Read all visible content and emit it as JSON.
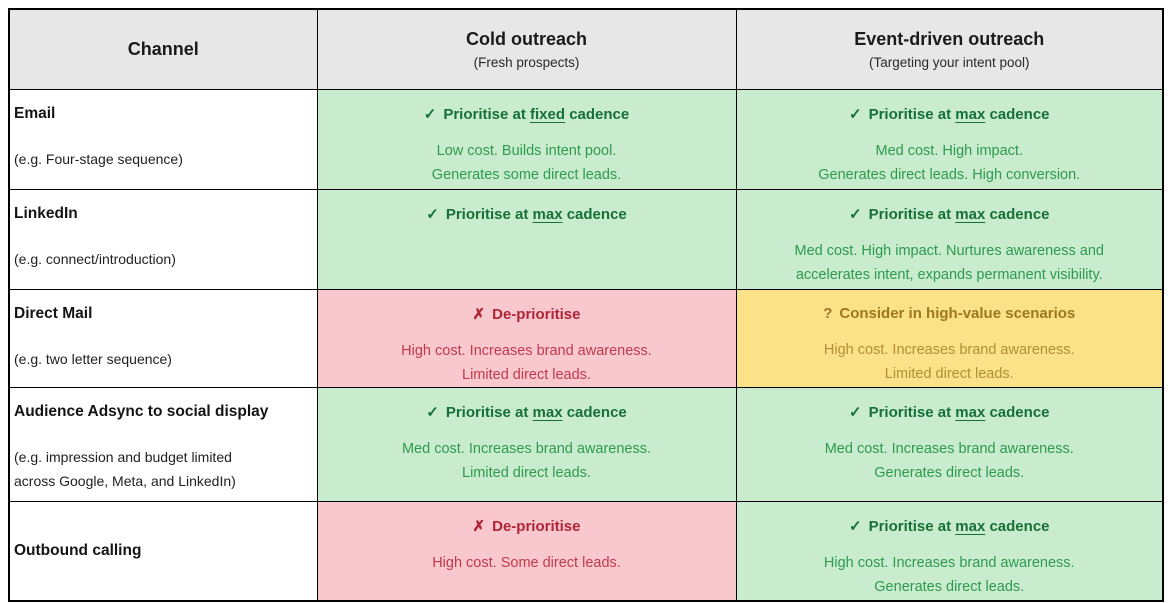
{
  "colors": {
    "header_bg": "#e8e7e7",
    "border": "#000000",
    "green_bg": "#c8eccd",
    "green_title": "#17703a",
    "green_body": "#2e9a4f",
    "red_bg": "#f9c8ce",
    "red_title": "#b02437",
    "red_body": "#c13a4b",
    "yellow_bg": "#fbe187",
    "yellow_title": "#9f781d",
    "yellow_body": "#b29035"
  },
  "table": {
    "columns": [
      {
        "title": "Channel",
        "subtitle": ""
      },
      {
        "title": "Cold outreach",
        "subtitle": "(Fresh prospects)"
      },
      {
        "title": "Event-driven outreach",
        "subtitle": "(Targeting your intent pool)"
      }
    ],
    "rows": [
      {
        "channel": "Email",
        "example_lines": [
          "(e.g. Four-stage sequence)",
          ""
        ],
        "cold": {
          "status": "green",
          "icon": "✓",
          "verdict_pre": "Prioritise at ",
          "verdict_underline": "fixed",
          "verdict_post": " cadence",
          "body": [
            "Low cost. Builds intent pool.",
            "Generates some direct leads."
          ]
        },
        "event": {
          "status": "green",
          "icon": "✓",
          "verdict_pre": "Prioritise at ",
          "verdict_underline": "max",
          "verdict_post": " cadence",
          "body": [
            "Med cost. High impact.",
            "Generates direct leads. High conversion."
          ]
        }
      },
      {
        "channel": "LinkedIn",
        "example_lines": [
          "(e.g. connect/introduction)",
          ""
        ],
        "cold": {
          "status": "green",
          "icon": "✓",
          "verdict_pre": "Prioritise at ",
          "verdict_underline": "max",
          "verdict_post": " cadence",
          "body": [
            "",
            ""
          ]
        },
        "event": {
          "status": "green",
          "icon": "✓",
          "verdict_pre": "Prioritise at ",
          "verdict_underline": "max",
          "verdict_post": " cadence",
          "body": [
            "Med cost. High impact. Nurtures awareness and",
            "accelerates intent, expands permanent visibility."
          ]
        }
      },
      {
        "channel": "Direct Mail",
        "example_lines": [
          "(e.g. two letter sequence)",
          ""
        ],
        "cold": {
          "status": "red",
          "icon": "✗",
          "verdict_pre": "De-prioritise",
          "verdict_underline": "",
          "verdict_post": "",
          "body": [
            "High cost. Increases brand awareness.",
            "Limited direct leads."
          ]
        },
        "event": {
          "status": "yellow",
          "icon": "?",
          "verdict_pre": "Consider in high-value scenarios",
          "verdict_underline": "",
          "verdict_post": "",
          "body": [
            "High cost. Increases brand awareness.",
            "Limited direct leads."
          ]
        }
      },
      {
        "channel": "Audience Adsync to social display",
        "example_lines": [
          "(e.g. impression and budget limited",
          "across Google, Meta, and LinkedIn)"
        ],
        "cold": {
          "status": "green",
          "icon": "✓",
          "verdict_pre": "Prioritise at ",
          "verdict_underline": "max",
          "verdict_post": " cadence",
          "body": [
            "Med cost. Increases brand awareness.",
            "Limited direct leads."
          ]
        },
        "event": {
          "status": "green",
          "icon": "✓",
          "verdict_pre": "Prioritise at ",
          "verdict_underline": "max",
          "verdict_post": " cadence",
          "body": [
            "Med cost. Increases brand awareness.",
            "Generates direct leads."
          ]
        }
      },
      {
        "channel": "Outbound calling",
        "example_lines": [
          "",
          ""
        ],
        "cold": {
          "status": "red",
          "icon": "✗",
          "verdict_pre": "De-prioritise",
          "verdict_underline": "",
          "verdict_post": "",
          "body": [
            "High cost. Some direct leads.",
            ""
          ]
        },
        "event": {
          "status": "green",
          "icon": "✓",
          "verdict_pre": "Prioritise at ",
          "verdict_underline": "max",
          "verdict_post": " cadence",
          "body": [
            "High cost. Increases brand awareness.",
            "Generates direct leads."
          ]
        }
      }
    ]
  },
  "chart_data": {
    "type": "table",
    "title": "",
    "columns": [
      "Channel",
      "Cold outreach (Fresh prospects)",
      "Event-driven outreach (Targeting your intent pool)"
    ],
    "rows": [
      [
        "Email (e.g. Four-stage sequence)",
        "✓ Prioritise at fixed cadence — Low cost. Builds intent pool. Generates some direct leads.",
        "✓ Prioritise at max cadence — Med cost. High impact. Generates direct leads. High conversion."
      ],
      [
        "LinkedIn (e.g. connect/introduction)",
        "✓ Prioritise at max cadence",
        "✓ Prioritise at max cadence — Med cost. High impact. Nurtures awareness and accelerates intent, expands permanent visibility."
      ],
      [
        "Direct Mail (e.g. two letter sequence)",
        "✗ De-prioritise — High cost. Increases brand awareness. Limited direct leads.",
        "? Consider in high-value scenarios — High cost. Increases brand awareness. Limited direct leads."
      ],
      [
        "Audience Adsync to social display (e.g. impression and budget limited across Google, Meta, and LinkedIn)",
        "✓ Prioritise at max cadence — Med cost. Increases brand awareness. Limited direct leads.",
        "✓ Prioritise at max cadence — Med cost. Increases brand awareness. Generates direct leads."
      ],
      [
        "Outbound calling",
        "✗ De-prioritise — High cost. Some direct leads.",
        "✓ Prioritise at max cadence — High cost. Increases brand awareness. Generates direct leads."
      ]
    ],
    "legend": [
      {
        "color": "#c8eccd",
        "meaning": "Prioritise"
      },
      {
        "color": "#f9c8ce",
        "meaning": "De-prioritise"
      },
      {
        "color": "#fbe187",
        "meaning": "Consider"
      }
    ]
  }
}
